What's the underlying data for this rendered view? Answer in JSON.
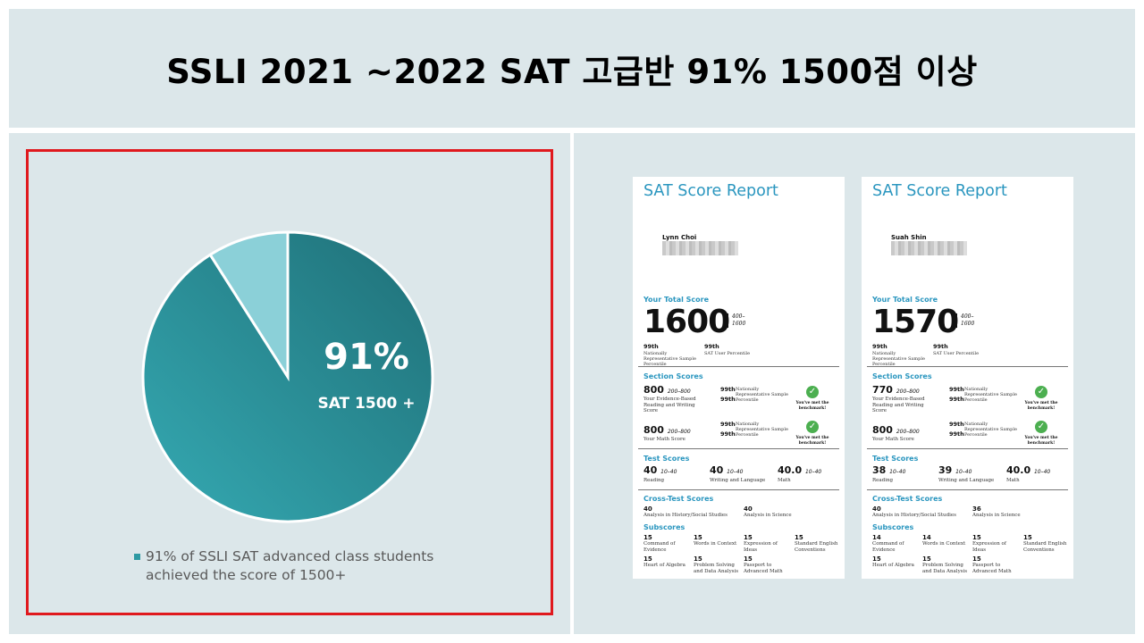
{
  "slide": {
    "title": "SSLI 2021 ~2022 SAT 고급반 91% 1500점 이상"
  },
  "chart_data": {
    "type": "pie",
    "slices": [
      {
        "label": "91%",
        "value": 91,
        "color": "#2e9aa3"
      },
      {
        "label": "",
        "value": 9,
        "color": "#8bd0d8"
      }
    ],
    "data_label_pct": "91%",
    "data_label_sub": "SAT 1500 +",
    "legend": {
      "line1": "91% of SSLI SAT advanced class students",
      "line2": "achieved the score of 1500+"
    }
  },
  "common": {
    "report_title": "SAT Score Report",
    "total_score_heading": "Your Total Score",
    "total_range": "400–\n1600",
    "nat_rep": "Nationally Representative Sample Percentile",
    "user_pct": "SAT User Percentile",
    "section_heading": "Section Scores",
    "sec_range": "200–800",
    "erw_label": "Your Evidence-Based Reading and Writing Score",
    "math_label": "Your Math Score",
    "benchmark": "You've met the benchmark!",
    "test_heading": "Test Scores",
    "test_range": "10–40",
    "reading": "Reading",
    "writing": "Writing and Language",
    "math": "Math",
    "cross_heading": "Cross-Test Scores",
    "cross_range": "10–40",
    "history": "Analysis in History/Social Studies",
    "science": "Analysis in Science",
    "sub_heading": "Subscores",
    "sub_range": "1–15",
    "command": "Command of Evidence",
    "words": "Words in Context",
    "expression": "Expression of Ideas",
    "conventions": "Standard English Conventions",
    "algebra": "Heart of Algebra",
    "problem": "Problem Solving and Data Analysis",
    "passport": "Passport to Advanced Math",
    "sub_value": "15",
    "check": "✓"
  },
  "reports": [
    {
      "name": "Lynn Choi",
      "total": "1600",
      "total_pct": "99th",
      "user_pct": "99th",
      "erw": "800",
      "math_score": "800",
      "sec_pct": "99th",
      "reading": "40",
      "writing": "40",
      "math": "40.0",
      "history": "40",
      "science": "40",
      "command": "15",
      "words": "15",
      "expression": "15",
      "conventions": "15",
      "algebra": "15",
      "problem": "15",
      "passport": "15"
    },
    {
      "name": "Suah Shin",
      "total": "1570",
      "total_pct": "99th",
      "user_pct": "99th",
      "erw": "770",
      "math_score": "800",
      "sec_pct": "99th",
      "reading": "38",
      "writing": "39",
      "math": "40.0",
      "history": "40",
      "science": "36",
      "command": "14",
      "words": "14",
      "expression": "15",
      "conventions": "15",
      "algebra": "15",
      "problem": "15",
      "passport": "15"
    }
  ]
}
